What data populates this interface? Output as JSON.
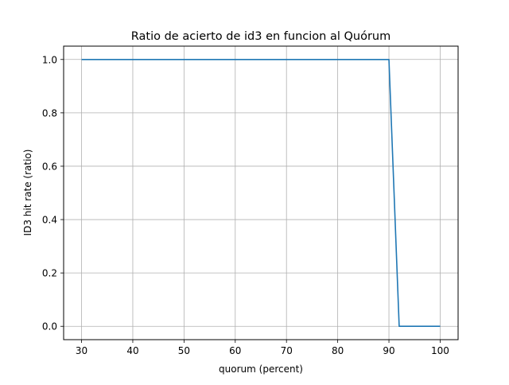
{
  "chart_data": {
    "type": "line",
    "title": "Ratio de acierto de id3 en funcion al Quórum",
    "xlabel": "quorum (percent)",
    "ylabel": "ID3 hit rate (ratio)",
    "xlim": [
      26.5,
      103.5
    ],
    "ylim": [
      -0.05,
      1.05
    ],
    "xticks": [
      30,
      40,
      50,
      60,
      70,
      80,
      90,
      100
    ],
    "yticks": [
      0.0,
      0.2,
      0.4,
      0.6,
      0.8,
      1.0
    ],
    "xtick_labels": [
      "30",
      "40",
      "50",
      "60",
      "70",
      "80",
      "90",
      "100"
    ],
    "ytick_labels": [
      "0.0",
      "0.2",
      "0.4",
      "0.6",
      "0.8",
      "1.0"
    ],
    "grid": true,
    "series": [
      {
        "color": "#1f77b4",
        "x": [
          30,
          40,
          50,
          60,
          70,
          80,
          90,
          92,
          100
        ],
        "y": [
          1.0,
          1.0,
          1.0,
          1.0,
          1.0,
          1.0,
          1.0,
          0.0,
          0.0
        ]
      }
    ]
  }
}
